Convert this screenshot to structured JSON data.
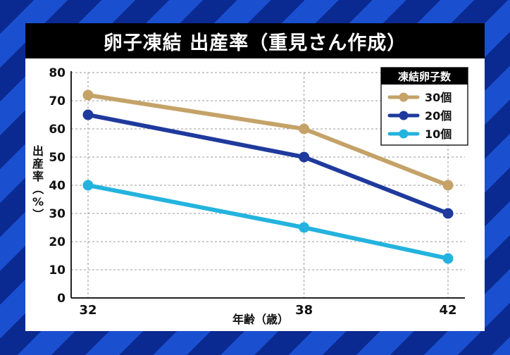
{
  "chart_data": {
    "type": "line",
    "title": "卵子凍結 出産率（重見さん作成）",
    "xlabel": "年齢（歳）",
    "ylabel": "出産率（%）",
    "x": [
      32,
      38,
      42
    ],
    "ylim": [
      0,
      80
    ],
    "yticks": [
      0,
      10,
      20,
      30,
      40,
      50,
      60,
      70,
      80
    ],
    "grid": true,
    "legend_title": "凍結卵子数",
    "legend_position": "top-right",
    "series": [
      {
        "name": "30個",
        "color": "#c4a268",
        "values": [
          72,
          60,
          40
        ]
      },
      {
        "name": "20個",
        "color": "#1f3a9c",
        "values": [
          65,
          50,
          30
        ]
      },
      {
        "name": "10個",
        "color": "#24b3de",
        "values": [
          40,
          25,
          14
        ]
      }
    ]
  }
}
